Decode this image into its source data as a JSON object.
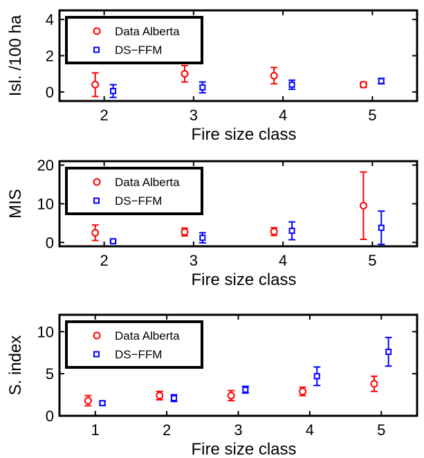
{
  "chart_data": [
    {
      "type": "scatter",
      "title": "",
      "xlabel": "Fire size class",
      "ylabel": "Isl. /100 ha",
      "xlim": [
        1.5,
        5.5
      ],
      "ylim": [
        -0.5,
        4.5
      ],
      "xticks": [
        2,
        3,
        4,
        5
      ],
      "yticks": [
        0,
        2,
        4
      ],
      "legend": "top-left",
      "series": [
        {
          "name": "Data Alberta",
          "color": "#ff0000",
          "marker": "circle",
          "x": [
            1.9,
            2.9,
            3.9,
            4.9
          ],
          "y": [
            0.4,
            1.0,
            0.9,
            0.4
          ],
          "err_low": [
            0.65,
            0.45,
            0.45,
            0.15
          ],
          "err_high": [
            0.65,
            0.45,
            0.45,
            0.15
          ]
        },
        {
          "name": "DS−FFM",
          "color": "#0000ff",
          "marker": "square",
          "x": [
            2.1,
            3.1,
            4.1,
            5.1
          ],
          "y": [
            0.05,
            0.25,
            0.4,
            0.6
          ],
          "err_low": [
            0.35,
            0.3,
            0.25,
            0.15
          ],
          "err_high": [
            0.35,
            0.3,
            0.25,
            0.15
          ]
        }
      ]
    },
    {
      "type": "scatter",
      "title": "",
      "xlabel": "Fire size class",
      "ylabel": "MIS",
      "xlim": [
        1.5,
        5.5
      ],
      "ylim": [
        -1,
        21
      ],
      "xticks": [
        2,
        3,
        4,
        5
      ],
      "yticks": [
        0,
        10,
        20
      ],
      "legend": "top-left",
      "series": [
        {
          "name": "Data Alberta",
          "color": "#ff0000",
          "marker": "circle",
          "x": [
            1.9,
            2.9,
            3.9,
            4.9
          ],
          "y": [
            2.5,
            2.7,
            2.8,
            9.5
          ],
          "err_low": [
            2.0,
            1.0,
            1.0,
            8.7
          ],
          "err_high": [
            2.0,
            1.0,
            1.0,
            8.7
          ]
        },
        {
          "name": "DS−FFM",
          "color": "#0000ff",
          "marker": "square",
          "x": [
            2.1,
            3.1,
            4.1,
            5.1
          ],
          "y": [
            0.3,
            1.2,
            3.0,
            3.8
          ],
          "err_low": [
            0.3,
            1.3,
            2.3,
            4.3
          ],
          "err_high": [
            0.3,
            1.3,
            2.3,
            4.3
          ]
        }
      ]
    },
    {
      "type": "scatter",
      "title": "",
      "xlabel": "Fire size class",
      "ylabel": "S. index",
      "xlim": [
        0.5,
        5.5
      ],
      "ylim": [
        0,
        12
      ],
      "xticks": [
        1,
        2,
        3,
        4,
        5
      ],
      "yticks": [
        0,
        5,
        10
      ],
      "legend": "top-left",
      "series": [
        {
          "name": "Data Alberta",
          "color": "#ff0000",
          "marker": "circle",
          "x": [
            0.9,
            1.9,
            2.9,
            3.9,
            4.9
          ],
          "y": [
            1.8,
            2.4,
            2.4,
            2.9,
            3.8
          ],
          "err_low": [
            0.6,
            0.5,
            0.6,
            0.5,
            0.9
          ],
          "err_high": [
            0.6,
            0.5,
            0.6,
            0.5,
            0.9
          ]
        },
        {
          "name": "DS−FFM",
          "color": "#0000ff",
          "marker": "square",
          "x": [
            1.1,
            2.1,
            3.1,
            4.1,
            5.1
          ],
          "y": [
            1.5,
            2.1,
            3.1,
            4.7,
            7.6
          ],
          "err_low": [
            0.2,
            0.4,
            0.4,
            1.1,
            1.7
          ],
          "err_high": [
            0.2,
            0.4,
            0.4,
            1.1,
            1.7
          ]
        }
      ]
    }
  ]
}
